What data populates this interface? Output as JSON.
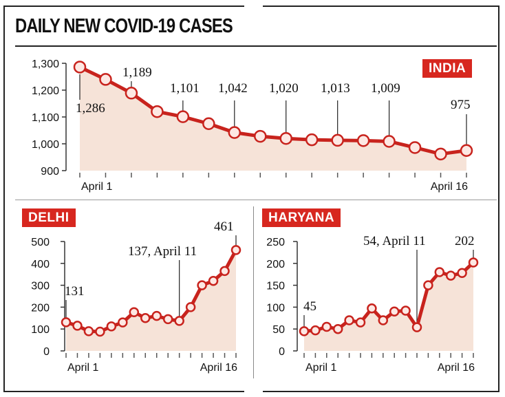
{
  "title": "DAILY NEW COVID-19 CASES",
  "colors": {
    "accent": "#d7271f",
    "fill": "#f6e3d8",
    "line": "#c8231d"
  },
  "chart_data": [
    {
      "id": "india",
      "type": "line",
      "badge": "INDIA",
      "x_labels": [
        "April 1",
        "April 16"
      ],
      "x": [
        1,
        2,
        3,
        4,
        5,
        6,
        7,
        8,
        9,
        10,
        11,
        12,
        13,
        14,
        15,
        16
      ],
      "values": [
        1286,
        1240,
        1189,
        1120,
        1101,
        1075,
        1042,
        1028,
        1020,
        1015,
        1013,
        1012,
        1009,
        986,
        962,
        975
      ],
      "ylim": [
        900,
        1300
      ],
      "yticks": [
        "1,300",
        "1,200",
        "1,100",
        "1,000",
        "900"
      ],
      "annotations": [
        {
          "day": 1,
          "text": "1,286"
        },
        {
          "day": 3,
          "text": "1,189"
        },
        {
          "day": 5,
          "text": "1,101"
        },
        {
          "day": 7,
          "text": "1,042"
        },
        {
          "day": 9,
          "text": "1,020"
        },
        {
          "day": 11,
          "text": "1,013"
        },
        {
          "day": 13,
          "text": "1,009"
        },
        {
          "day": 16,
          "text": "975"
        }
      ]
    },
    {
      "id": "delhi",
      "type": "line",
      "badge": "DELHI",
      "x_labels": [
        "April 1",
        "April 16"
      ],
      "x": [
        1,
        2,
        3,
        4,
        5,
        6,
        7,
        8,
        9,
        10,
        11,
        12,
        13,
        14,
        15,
        16
      ],
      "values": [
        131,
        115,
        90,
        88,
        112,
        130,
        177,
        150,
        160,
        145,
        137,
        200,
        300,
        320,
        365,
        461
      ],
      "ylim": [
        0,
        500
      ],
      "yticks": [
        "500",
        "400",
        "300",
        "200",
        "100",
        "0"
      ],
      "annotations": [
        {
          "day": 1,
          "text": "131"
        },
        {
          "day": 11,
          "text": "137, April 11"
        },
        {
          "day": 16,
          "text": "461"
        }
      ]
    },
    {
      "id": "haryana",
      "type": "line",
      "badge": "HARYANA",
      "x_labels": [
        "April 1",
        "April 16"
      ],
      "x": [
        1,
        2,
        3,
        4,
        5,
        6,
        7,
        8,
        9,
        10,
        11,
        12,
        13,
        14,
        15,
        16
      ],
      "values": [
        45,
        47,
        55,
        50,
        70,
        65,
        97,
        70,
        90,
        92,
        54,
        150,
        180,
        172,
        178,
        202
      ],
      "ylim": [
        0,
        250
      ],
      "yticks": [
        "250",
        "200",
        "150",
        "100",
        "50",
        "0"
      ],
      "annotations": [
        {
          "day": 1,
          "text": "45"
        },
        {
          "day": 11,
          "text": "54, April 11"
        },
        {
          "day": 16,
          "text": "202"
        }
      ]
    }
  ]
}
